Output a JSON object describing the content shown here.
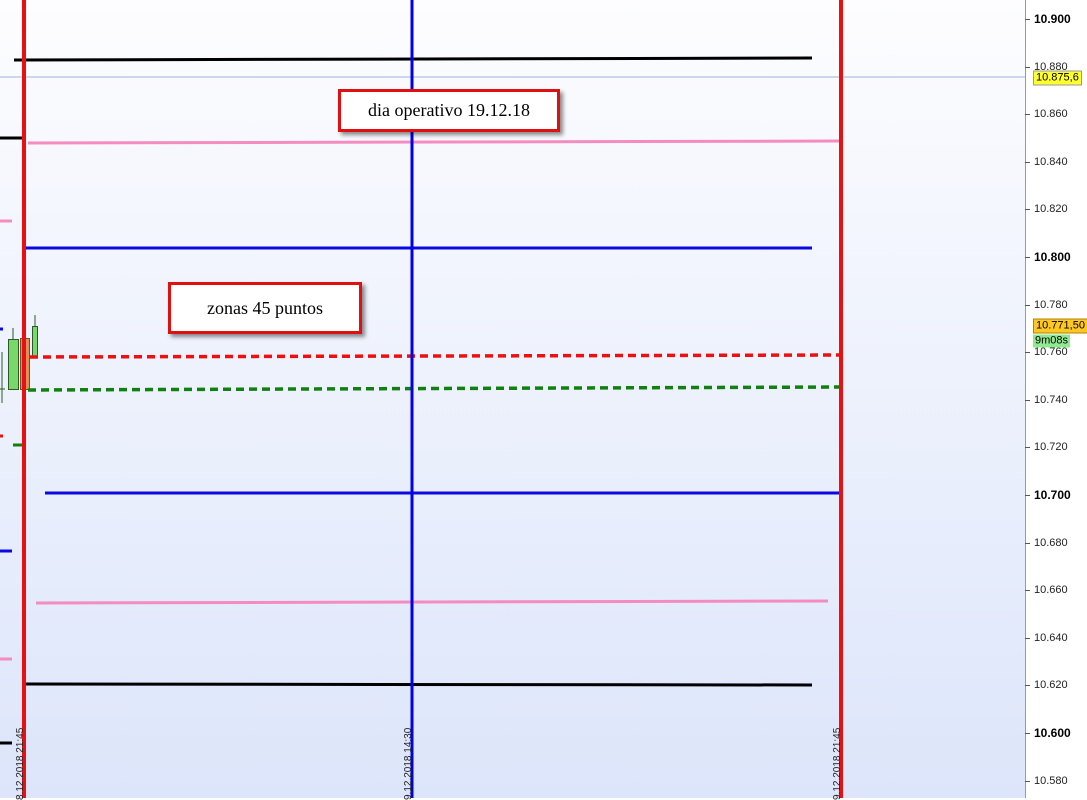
{
  "price_axis": {
    "ticks": [
      "10.900",
      "10.880",
      "10.860",
      "10.840",
      "10.820",
      "10.800",
      "10.780",
      "10.760",
      "10.740",
      "10.720",
      "10.700",
      "10.680",
      "10.660",
      "10.640",
      "10.620",
      "10.600",
      "10.580"
    ],
    "major": [
      "10.900",
      "10.800",
      "10.700",
      "10.600"
    ],
    "crosshair_price": "10.875,6",
    "last_price": "10.771,50",
    "bar_timer": "9m08s"
  },
  "time_labels": [
    "8.12.2018 21:45",
    "9.12.2018 14:30",
    "9.12.2018 21:45"
  ],
  "annotations": {
    "day_label": "dia operativo 19.12.18",
    "zones_label": "zonas 45 puntos"
  },
  "colors": {
    "session_line": "#e81010",
    "mid_line": "#0000ee",
    "level_black": "#000000",
    "level_pink": "#f48cc0",
    "level_blue": "#0a0ae0",
    "dotted_red": "#ee1010",
    "dotted_green": "#108010",
    "crosshair_tag": "#ffff30",
    "last_price_tag": "#ffc820",
    "timer_tag": "#90e890"
  }
}
